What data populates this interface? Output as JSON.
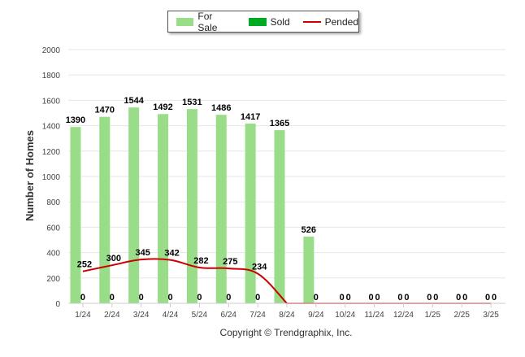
{
  "chart_data": {
    "type": "bar",
    "title": "",
    "xlabel": "",
    "ylabel": "Number of Homes",
    "ylim": [
      0,
      2000
    ],
    "yticks": [
      0,
      200,
      400,
      600,
      800,
      1000,
      1200,
      1400,
      1600,
      1800,
      2000
    ],
    "categories": [
      "1/24",
      "2/24",
      "3/24",
      "4/24",
      "5/24",
      "6/24",
      "7/24",
      "8/24",
      "9/24",
      "10/24",
      "11/24",
      "12/24",
      "1/25",
      "2/25",
      "3/25"
    ],
    "grid": "horizontal",
    "legend_position": "top-center",
    "series": [
      {
        "name": "For Sale",
        "kind": "bar",
        "color": "#99dd88",
        "values": [
          1390,
          1470,
          1544,
          1492,
          1531,
          1486,
          1417,
          1365,
          526,
          0,
          0,
          0,
          0,
          0,
          0
        ]
      },
      {
        "name": "Sold",
        "kind": "bar",
        "color": "#00aa22",
        "values": [
          0,
          0,
          0,
          0,
          0,
          0,
          0,
          0,
          0,
          0,
          0,
          0,
          0,
          0,
          0
        ]
      },
      {
        "name": "Pended",
        "kind": "line",
        "color": "#cc0000",
        "values": [
          252,
          300,
          345,
          342,
          282,
          275,
          234,
          0,
          0,
          0,
          0,
          0,
          0,
          0,
          0
        ]
      }
    ],
    "bar_labels": [
      "1390",
      "1470",
      "1544",
      "1492",
      "1531",
      "1486",
      "1417",
      "1365",
      "526",
      "0",
      "0",
      "0",
      "0",
      "0",
      "0"
    ],
    "sold_labels": [
      "0",
      "0",
      "0",
      "0",
      "0",
      "0",
      "0",
      "",
      "0",
      "0",
      "0",
      "0",
      "0",
      "0",
      "0"
    ],
    "pended_labels": [
      "252",
      "300",
      "345",
      "342",
      "282",
      "275",
      "234",
      "",
      "",
      "0",
      "0",
      "0",
      "0",
      "0",
      "0"
    ]
  },
  "legend": {
    "for_sale": "For Sale",
    "sold": "Sold",
    "pended": "Pended"
  },
  "credit": "Copyright © Trendgraphix, Inc."
}
